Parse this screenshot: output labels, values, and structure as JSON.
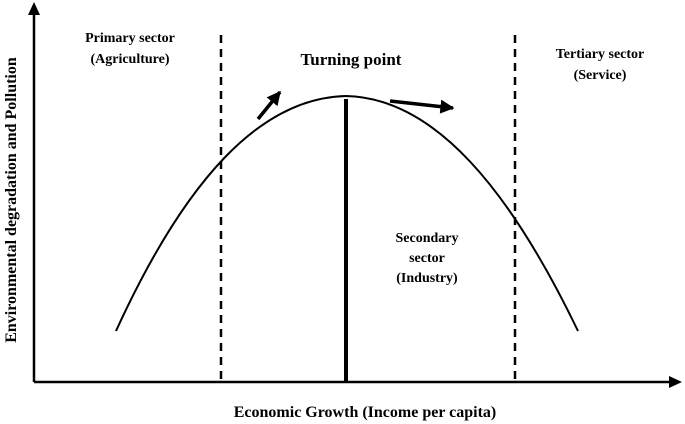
{
  "axes": {
    "x_label": "Economic Growth (Income per capita)",
    "y_label": "Environmental degradation and Pollution"
  },
  "labels": {
    "turning_point": "Turning point",
    "primary_sector": [
      "Primary sector",
      "(Agriculture)"
    ],
    "secondary_sector": [
      "Secondary",
      "sector",
      "(Industry)"
    ],
    "tertiary_sector": [
      "Tertiary sector",
      "(Service)"
    ]
  },
  "colors": {
    "ink": "#000000",
    "background": "#ffffff"
  }
}
